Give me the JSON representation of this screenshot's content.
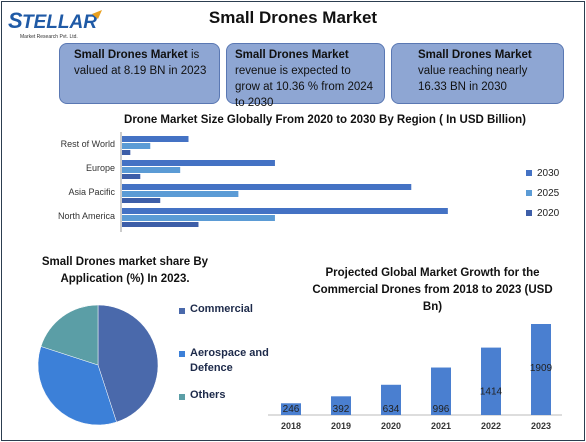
{
  "title": "Small Drones Market",
  "logo": {
    "name": "STELLAR",
    "tagline": "Market Research Pvt. Ltd."
  },
  "cards": [
    {
      "bold": "Small Drones Market",
      "text": " is valued at 8.19 BN in 2023"
    },
    {
      "bold": "Small Drones Market",
      "text": " revenue is expected to grow at 10.36 % from 2024 to 2030"
    },
    {
      "bold": "Small Drones Market",
      "text": " value reaching nearly 16.33 BN in 2030"
    }
  ],
  "colors": {
    "c2030": "#4472c4",
    "c2025": "#5b9bd5",
    "c2020": "#3d5ea8",
    "commercial": "#4a69ab",
    "aerospace": "#3c80d8",
    "others": "#5b9ea6",
    "column": "#4a7fd0",
    "card": "#8ea6d3"
  },
  "chart_data": [
    {
      "type": "bar",
      "orientation": "horizontal",
      "title": "Drone Market Size Globally From 2020 to 2030 By Region ( In USD Billion)",
      "categories": [
        "Rest of World",
        "Europe",
        "Asia Pacific",
        "North America"
      ],
      "series": [
        {
          "name": "2030",
          "values": [
            2.0,
            4.6,
            8.7,
            9.8
          ]
        },
        {
          "name": "2025",
          "values": [
            0.85,
            1.75,
            3.5,
            4.6
          ]
        },
        {
          "name": "2020",
          "values": [
            0.25,
            0.55,
            1.15,
            2.3
          ]
        }
      ],
      "xlim": [
        0,
        12
      ],
      "legend": "right",
      "grid": false
    },
    {
      "type": "pie",
      "title": "Small Drones market share By Application (%) In 2023.",
      "slices": [
        {
          "name": "Commercial",
          "value": 45
        },
        {
          "name": "Aerospace and Defence",
          "value": 35
        },
        {
          "name": "Others",
          "value": 20
        }
      ],
      "legend": "right"
    },
    {
      "type": "bar",
      "title": "Projected Global Market Growth for the Commercial Drones from 2018 to 2023 (USD Bn)",
      "categories": [
        "2018",
        "2019",
        "2020",
        "2021",
        "2022",
        "2023"
      ],
      "values": [
        246,
        392,
        634,
        996,
        1414,
        1909
      ],
      "ylim": [
        0,
        2000
      ],
      "grid": false
    }
  ]
}
